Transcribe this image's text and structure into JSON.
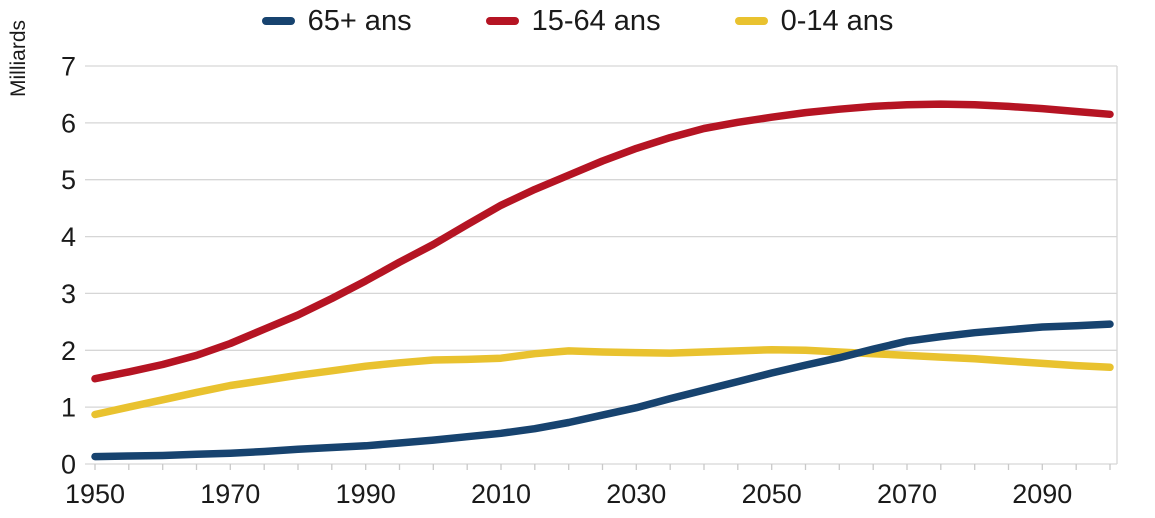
{
  "chart_data": {
    "type": "line",
    "title": "",
    "xlabel": "",
    "ylabel": "Milliards",
    "xlim": [
      1950,
      2100
    ],
    "ylim": [
      0,
      7
    ],
    "xticks": [
      1950,
      1970,
      1990,
      2010,
      2030,
      2050,
      2070,
      2090
    ],
    "yticks": [
      0,
      1,
      2,
      3,
      4,
      5,
      6,
      7
    ],
    "minor_xtick_step": 5,
    "grid": "horizontal",
    "legend_position": "top-center",
    "x": [
      1950,
      1955,
      1960,
      1965,
      1970,
      1975,
      1980,
      1985,
      1990,
      1995,
      2000,
      2005,
      2010,
      2015,
      2020,
      2025,
      2030,
      2035,
      2040,
      2045,
      2050,
      2055,
      2060,
      2065,
      2070,
      2075,
      2080,
      2085,
      2090,
      2095,
      2100
    ],
    "series": [
      {
        "name": "65+ ans",
        "color": "#17436f",
        "values": [
          0.13,
          0.14,
          0.15,
          0.17,
          0.19,
          0.22,
          0.26,
          0.29,
          0.32,
          0.37,
          0.42,
          0.48,
          0.54,
          0.62,
          0.73,
          0.86,
          0.99,
          1.15,
          1.3,
          1.45,
          1.6,
          1.74,
          1.87,
          2.02,
          2.16,
          2.24,
          2.31,
          2.36,
          2.41,
          2.43,
          2.46
        ]
      },
      {
        "name": "15-64 ans",
        "color": "#b51423",
        "values": [
          1.5,
          1.62,
          1.75,
          1.91,
          2.12,
          2.37,
          2.62,
          2.91,
          3.22,
          3.55,
          3.86,
          4.21,
          4.55,
          4.83,
          5.08,
          5.33,
          5.55,
          5.74,
          5.9,
          6.01,
          6.1,
          6.18,
          6.24,
          6.29,
          6.32,
          6.33,
          6.32,
          6.29,
          6.25,
          6.2,
          6.15
        ]
      },
      {
        "name": "0-14 ans",
        "color": "#e9c22f",
        "values": [
          0.87,
          1.0,
          1.13,
          1.26,
          1.38,
          1.47,
          1.56,
          1.64,
          1.72,
          1.78,
          1.83,
          1.84,
          1.86,
          1.94,
          1.99,
          1.97,
          1.96,
          1.95,
          1.97,
          1.99,
          2.01,
          2.0,
          1.97,
          1.94,
          1.91,
          1.88,
          1.85,
          1.81,
          1.77,
          1.73,
          1.7
        ]
      }
    ],
    "colors": {
      "grid": "#d6d6d6",
      "axis_text": "#1a1a1a"
    }
  }
}
